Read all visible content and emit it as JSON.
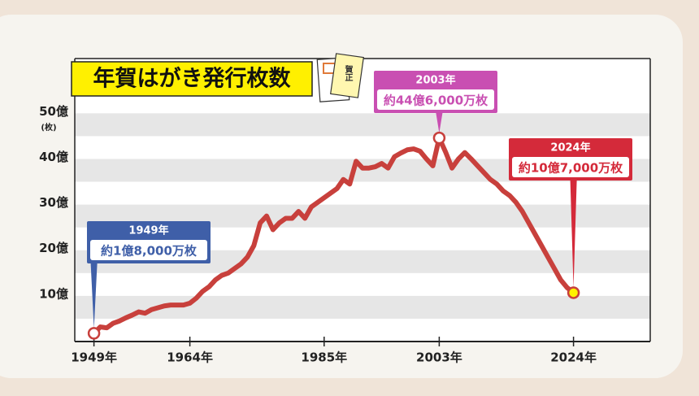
{
  "chart_data": {
    "type": "line",
    "title": "年賀はがき発行枚数",
    "icon_text": "賀正",
    "y_unit_label": "(枚)",
    "x": [
      1949,
      1950,
      1951,
      1952,
      1953,
      1954,
      1955,
      1956,
      1957,
      1958,
      1959,
      1960,
      1961,
      1962,
      1963,
      1964,
      1965,
      1966,
      1967,
      1968,
      1969,
      1970,
      1971,
      1972,
      1973,
      1974,
      1975,
      1976,
      1977,
      1978,
      1979,
      1980,
      1981,
      1982,
      1983,
      1984,
      1985,
      1986,
      1987,
      1988,
      1989,
      1990,
      1991,
      1992,
      1993,
      1994,
      1995,
      1996,
      1997,
      1998,
      1999,
      2000,
      2001,
      2002,
      2003,
      2004,
      2005,
      2006,
      2007,
      2008,
      2009,
      2010,
      2011,
      2012,
      2013,
      2014,
      2015,
      2016,
      2017,
      2018,
      2019,
      2020,
      2021,
      2022,
      2023,
      2024
    ],
    "series": [
      {
        "name": "発行枚数",
        "color": "#c8403c",
        "values": [
          1.8,
          3.2,
          3.0,
          4.0,
          4.5,
          5.2,
          5.8,
          6.5,
          6.2,
          7.0,
          7.4,
          7.8,
          8.0,
          8.0,
          8.0,
          8.4,
          9.5,
          11.0,
          12.0,
          13.5,
          14.5,
          15.0,
          16.0,
          17.0,
          18.5,
          21.0,
          26.0,
          27.5,
          24.5,
          26.0,
          27.0,
          27.0,
          28.5,
          27.0,
          29.5,
          30.5,
          31.5,
          32.5,
          33.5,
          35.5,
          34.5,
          39.5,
          38.0,
          38.0,
          38.3,
          39.0,
          38.0,
          40.5,
          41.3,
          42.0,
          42.2,
          41.7,
          40.0,
          38.5,
          44.6,
          41.5,
          38.0,
          40.0,
          41.4,
          40.0,
          38.5,
          37.0,
          35.5,
          34.5,
          33.0,
          32.0,
          30.5,
          28.5,
          26.0,
          23.5,
          21.0,
          18.5,
          16.0,
          13.5,
          11.8,
          10.7
        ]
      }
    ],
    "xlim": [
      1946,
      2036
    ],
    "xticks": [
      {
        "value": 1949,
        "label": "1949年"
      },
      {
        "value": 1964,
        "label": "1964年"
      },
      {
        "value": 1985,
        "label": "1985年"
      },
      {
        "value": 2003,
        "label": "2003年"
      },
      {
        "value": 2024,
        "label": "2024年"
      }
    ],
    "ylim": [
      0,
      62
    ],
    "yticks": [
      {
        "value": 10,
        "label": "10億"
      },
      {
        "value": 20,
        "label": "20億"
      },
      {
        "value": 30,
        "label": "30億"
      },
      {
        "value": 40,
        "label": "40億"
      },
      {
        "value": 50,
        "label": "50億"
      }
    ],
    "annotations": [
      {
        "x": 1949,
        "label": "1949年",
        "text": "約1億8,000万枚",
        "color": "#3f5fa8"
      },
      {
        "x": 2003,
        "label": "2003年",
        "text": "約44億6,000万枚",
        "color": "#c94fb2"
      },
      {
        "x": 2024,
        "label": "2024年",
        "text": "約10億7,000万枚",
        "color": "#d42a3a"
      }
    ]
  }
}
